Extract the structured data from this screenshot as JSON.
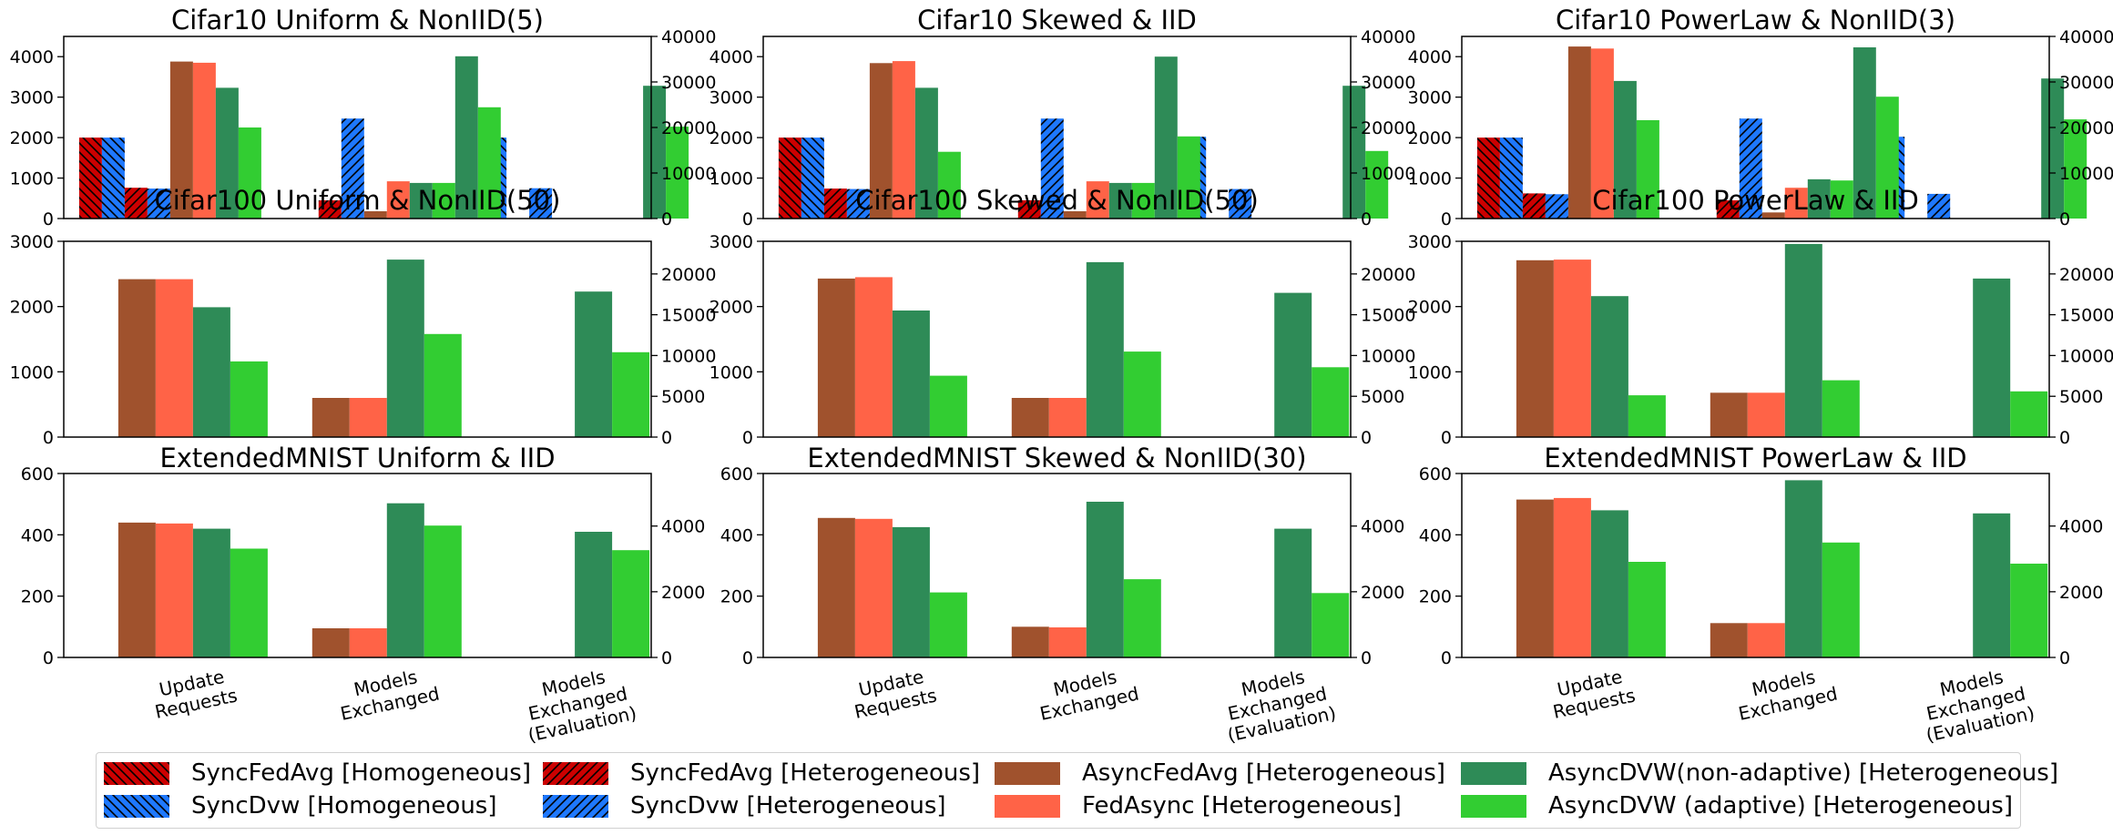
{
  "colors": {
    "sync_fedavg": "#cc0000",
    "sync_dvw": "#1e78ff",
    "async_fedavg": "#a0522d",
    "fedasync": "#ff6347",
    "asyncdvw_nonadaptive": "#2e8b57",
    "asyncdvw_adaptive": "#32cd32"
  },
  "x_categories": [
    "Update\nRequests",
    "Models\nExchanged",
    "Models\nExchanged\n(Evaluation)"
  ],
  "legend": [
    {
      "label": "SyncFedAvg [Homogeneous]",
      "color_key": "sync_fedavg",
      "hatch": "back"
    },
    {
      "label": "SyncDvw [Homogeneous]",
      "color_key": "sync_dvw",
      "hatch": "back"
    },
    {
      "label": "SyncFedAvg [Heterogeneous]",
      "color_key": "sync_fedavg",
      "hatch": "fwd"
    },
    {
      "label": "SyncDvw [Heterogeneous]",
      "color_key": "sync_dvw",
      "hatch": "fwd"
    },
    {
      "label": "AsyncFedAvg [Heterogeneous]",
      "color_key": "async_fedavg",
      "hatch": "none"
    },
    {
      "label": "FedAsync [Heterogeneous]",
      "color_key": "fedasync",
      "hatch": "none"
    },
    {
      "label": "AsyncDVW(non-adaptive) [Heterogeneous]",
      "color_key": "asyncdvw_nonadaptive",
      "hatch": "none"
    },
    {
      "label": "AsyncDVW (adaptive) [Heterogeneous]",
      "color_key": "asyncdvw_adaptive",
      "hatch": "none"
    }
  ],
  "chart_data": [
    {
      "type": "bar",
      "title": "Cifar10 Uniform & NonIID(5)",
      "ylim": [
        0,
        4500
      ],
      "yticks": [
        0,
        1000,
        2000,
        3000,
        4000
      ],
      "y2lim": [
        0,
        40000
      ],
      "y2ticks": [
        0,
        10000,
        20000,
        30000,
        40000
      ],
      "series": [
        {
          "name": "SyncFedAvg [Homogeneous]",
          "color_key": "sync_fedavg",
          "hatch": "back",
          "slot": 0,
          "values": [
            2000,
            null,
            null
          ]
        },
        {
          "name": "SyncDvw [Homogeneous]",
          "color_key": "sync_dvw",
          "hatch": "back",
          "slot": 1,
          "values": [
            2000,
            null,
            2000
          ]
        },
        {
          "name": "SyncFedAvg [Heterogeneous]",
          "color_key": "sync_fedavg",
          "hatch": "fwd",
          "slot": 2,
          "values": [
            760,
            450,
            null
          ]
        },
        {
          "name": "SyncDvw [Heterogeneous]",
          "color_key": "sync_dvw",
          "hatch": "fwd",
          "slot": 3,
          "values": [
            740,
            2470,
            750
          ]
        },
        {
          "name": "AsyncFedAvg [Heterogeneous]",
          "color_key": "async_fedavg",
          "hatch": "none",
          "slot": 4,
          "values": [
            3880,
            180,
            null
          ]
        },
        {
          "name": "FedAsync [Heterogeneous]",
          "color_key": "fedasync",
          "hatch": "none",
          "slot": 5,
          "values": [
            3850,
            920,
            null
          ]
        },
        {
          "name": "AsyncDVW(non-adaptive) [Heterogeneous]",
          "color_key": "asyncdvw_nonadaptive",
          "hatch": "none",
          "slot": 6,
          "values": [
            3230,
            880,
            null
          ]
        },
        {
          "name": "AsyncDVW (adaptive) [Heterogeneous]",
          "color_key": "asyncdvw_adaptive",
          "hatch": "none",
          "slot": 7,
          "values": [
            2250,
            880,
            null
          ]
        },
        {
          "name": "AsyncDVW(non-adaptive) [Heterogeneous]",
          "color_key": "asyncdvw_nonadaptive",
          "hatch": "none",
          "slot": 8,
          "values": [
            null,
            4010,
            3280
          ]
        },
        {
          "name": "AsyncDVW (adaptive) [Heterogeneous]",
          "color_key": "asyncdvw_adaptive",
          "hatch": "none",
          "slot": 9,
          "values": [
            null,
            2750,
            2270
          ]
        }
      ]
    },
    {
      "type": "bar",
      "title": "Cifar10 Skewed & IID",
      "ylim": [
        0,
        4500
      ],
      "yticks": [
        0,
        1000,
        2000,
        3000,
        4000
      ],
      "y2lim": [
        0,
        40000
      ],
      "y2ticks": [
        0,
        10000,
        20000,
        30000,
        40000
      ],
      "series": [
        {
          "name": "SyncFedAvg [Homogeneous]",
          "color_key": "sync_fedavg",
          "hatch": "back",
          "slot": 0,
          "values": [
            2000,
            null,
            null
          ]
        },
        {
          "name": "SyncDvw [Homogeneous]",
          "color_key": "sync_dvw",
          "hatch": "back",
          "slot": 1,
          "values": [
            2000,
            null,
            2020
          ]
        },
        {
          "name": "SyncFedAvg [Heterogeneous]",
          "color_key": "sync_fedavg",
          "hatch": "fwd",
          "slot": 2,
          "values": [
            740,
            450,
            null
          ]
        },
        {
          "name": "SyncDvw [Heterogeneous]",
          "color_key": "sync_dvw",
          "hatch": "fwd",
          "slot": 3,
          "values": [
            730,
            2470,
            730
          ]
        },
        {
          "name": "AsyncFedAvg [Heterogeneous]",
          "color_key": "async_fedavg",
          "hatch": "none",
          "slot": 4,
          "values": [
            3840,
            180,
            null
          ]
        },
        {
          "name": "FedAsync [Heterogeneous]",
          "color_key": "fedasync",
          "hatch": "none",
          "slot": 5,
          "values": [
            3890,
            920,
            null
          ]
        },
        {
          "name": "AsyncDVW(non-adaptive) [Heterogeneous]",
          "color_key": "asyncdvw_nonadaptive",
          "hatch": "none",
          "slot": 6,
          "values": [
            3230,
            880,
            null
          ]
        },
        {
          "name": "AsyncDVW (adaptive) [Heterogeneous]",
          "color_key": "asyncdvw_adaptive",
          "hatch": "none",
          "slot": 7,
          "values": [
            1650,
            880,
            null
          ]
        },
        {
          "name": "AsyncDVW(non-adaptive) [Heterogeneous]",
          "color_key": "asyncdvw_nonadaptive",
          "hatch": "none",
          "slot": 8,
          "values": [
            null,
            4000,
            3280
          ]
        },
        {
          "name": "AsyncDVW (adaptive) [Heterogeneous]",
          "color_key": "asyncdvw_adaptive",
          "hatch": "none",
          "slot": 9,
          "values": [
            null,
            2030,
            1670
          ]
        }
      ]
    },
    {
      "type": "bar",
      "title": "Cifar10 PowerLaw & NonIID(3)",
      "ylim": [
        0,
        4500
      ],
      "yticks": [
        0,
        1000,
        2000,
        3000,
        4000
      ],
      "y2lim": [
        0,
        40000
      ],
      "y2ticks": [
        0,
        10000,
        20000,
        30000,
        40000
      ],
      "series": [
        {
          "name": "SyncFedAvg [Homogeneous]",
          "color_key": "sync_fedavg",
          "hatch": "back",
          "slot": 0,
          "values": [
            2000,
            null,
            null
          ]
        },
        {
          "name": "SyncDvw [Homogeneous]",
          "color_key": "sync_dvw",
          "hatch": "back",
          "slot": 1,
          "values": [
            2000,
            null,
            2020
          ]
        },
        {
          "name": "SyncFedAvg [Heterogeneous]",
          "color_key": "sync_fedavg",
          "hatch": "fwd",
          "slot": 2,
          "values": [
            620,
            450,
            null
          ]
        },
        {
          "name": "SyncDvw [Heterogeneous]",
          "color_key": "sync_dvw",
          "hatch": "fwd",
          "slot": 3,
          "values": [
            600,
            2470,
            610
          ]
        },
        {
          "name": "AsyncFedAvg [Heterogeneous]",
          "color_key": "async_fedavg",
          "hatch": "none",
          "slot": 4,
          "values": [
            4250,
            150,
            null
          ]
        },
        {
          "name": "FedAsync [Heterogeneous]",
          "color_key": "fedasync",
          "hatch": "none",
          "slot": 5,
          "values": [
            4200,
            760,
            null
          ]
        },
        {
          "name": "AsyncDVW(non-adaptive) [Heterogeneous]",
          "color_key": "asyncdvw_nonadaptive",
          "hatch": "none",
          "slot": 6,
          "values": [
            3400,
            970,
            null
          ]
        },
        {
          "name": "AsyncDVW (adaptive) [Heterogeneous]",
          "color_key": "asyncdvw_adaptive",
          "hatch": "none",
          "slot": 7,
          "values": [
            2430,
            940,
            null
          ]
        },
        {
          "name": "AsyncDVW(non-adaptive) [Heterogeneous]",
          "color_key": "asyncdvw_nonadaptive",
          "hatch": "none",
          "slot": 8,
          "values": [
            null,
            4230,
            3460
          ]
        },
        {
          "name": "AsyncDVW (adaptive) [Heterogeneous]",
          "color_key": "asyncdvw_adaptive",
          "hatch": "none",
          "slot": 9,
          "values": [
            null,
            3010,
            2450
          ]
        }
      ]
    },
    {
      "type": "bar",
      "title": "Cifar100 Uniform & NonIID(50)",
      "ylim": [
        0,
        3000
      ],
      "yticks": [
        0,
        1000,
        2000,
        3000
      ],
      "y2lim": [
        0,
        24000
      ],
      "y2ticks": [
        0,
        5000,
        10000,
        15000,
        20000
      ],
      "series": [
        {
          "name": "AsyncFedAvg [Heterogeneous]",
          "color_key": "async_fedavg",
          "hatch": "none",
          "slot": 0,
          "values": [
            2420,
            600,
            null
          ]
        },
        {
          "name": "FedAsync [Heterogeneous]",
          "color_key": "fedasync",
          "hatch": "none",
          "slot": 1,
          "values": [
            2420,
            600,
            null
          ]
        },
        {
          "name": "AsyncDVW(non-adaptive) [Heterogeneous]",
          "color_key": "asyncdvw_nonadaptive",
          "hatch": "none",
          "slot": 2,
          "values": [
            1990,
            2720,
            2230
          ]
        },
        {
          "name": "AsyncDVW (adaptive) [Heterogeneous]",
          "color_key": "asyncdvw_adaptive",
          "hatch": "none",
          "slot": 3,
          "values": [
            1160,
            1580,
            1300
          ]
        }
      ]
    },
    {
      "type": "bar",
      "title": "Cifar100 Skewed & NonIID(50)",
      "ylim": [
        0,
        3000
      ],
      "yticks": [
        0,
        1000,
        2000,
        3000
      ],
      "y2lim": [
        0,
        24000
      ],
      "y2ticks": [
        0,
        5000,
        10000,
        15000,
        20000
      ],
      "series": [
        {
          "name": "AsyncFedAvg [Heterogeneous]",
          "color_key": "async_fedavg",
          "hatch": "none",
          "slot": 0,
          "values": [
            2430,
            600,
            null
          ]
        },
        {
          "name": "FedAsync [Heterogeneous]",
          "color_key": "fedasync",
          "hatch": "none",
          "slot": 1,
          "values": [
            2450,
            600,
            null
          ]
        },
        {
          "name": "AsyncDVW(non-adaptive) [Heterogeneous]",
          "color_key": "asyncdvw_nonadaptive",
          "hatch": "none",
          "slot": 2,
          "values": [
            1940,
            2680,
            2210
          ]
        },
        {
          "name": "AsyncDVW (adaptive) [Heterogeneous]",
          "color_key": "asyncdvw_adaptive",
          "hatch": "none",
          "slot": 3,
          "values": [
            940,
            1310,
            1070
          ]
        }
      ]
    },
    {
      "type": "bar",
      "title": "Cifar100 PowerLaw & IID",
      "ylim": [
        0,
        3000
      ],
      "yticks": [
        0,
        1000,
        2000,
        3000
      ],
      "y2lim": [
        0,
        24000
      ],
      "y2ticks": [
        0,
        5000,
        10000,
        15000,
        20000
      ],
      "series": [
        {
          "name": "AsyncFedAvg [Heterogeneous]",
          "color_key": "async_fedavg",
          "hatch": "none",
          "slot": 0,
          "values": [
            2710,
            680,
            null
          ]
        },
        {
          "name": "FedAsync [Heterogeneous]",
          "color_key": "fedasync",
          "hatch": "none",
          "slot": 1,
          "values": [
            2720,
            680,
            null
          ]
        },
        {
          "name": "AsyncDVW(non-adaptive) [Heterogeneous]",
          "color_key": "asyncdvw_nonadaptive",
          "hatch": "none",
          "slot": 2,
          "values": [
            2160,
            2960,
            2430
          ]
        },
        {
          "name": "AsyncDVW (adaptive) [Heterogeneous]",
          "color_key": "asyncdvw_adaptive",
          "hatch": "none",
          "slot": 3,
          "values": [
            640,
            870,
            700
          ]
        }
      ]
    },
    {
      "type": "bar",
      "title": "ExtendedMNIST Uniform & IID",
      "ylim": [
        0,
        600
      ],
      "yticks": [
        0,
        200,
        400,
        600
      ],
      "y2lim": [
        0,
        5600
      ],
      "y2ticks": [
        0,
        2000,
        4000
      ],
      "series": [
        {
          "name": "AsyncFedAvg [Heterogeneous]",
          "color_key": "async_fedavg",
          "hatch": "none",
          "slot": 0,
          "values": [
            440,
            95,
            null
          ]
        },
        {
          "name": "FedAsync [Heterogeneous]",
          "color_key": "fedasync",
          "hatch": "none",
          "slot": 1,
          "values": [
            437,
            95,
            null
          ]
        },
        {
          "name": "AsyncDVW(non-adaptive) [Heterogeneous]",
          "color_key": "asyncdvw_nonadaptive",
          "hatch": "none",
          "slot": 2,
          "values": [
            420,
            503,
            410
          ]
        },
        {
          "name": "AsyncDVW (adaptive) [Heterogeneous]",
          "color_key": "asyncdvw_adaptive",
          "hatch": "none",
          "slot": 3,
          "values": [
            355,
            430,
            350
          ]
        }
      ]
    },
    {
      "type": "bar",
      "title": "ExtendedMNIST Skewed & NonIID(30)",
      "ylim": [
        0,
        600
      ],
      "yticks": [
        0,
        200,
        400,
        600
      ],
      "y2lim": [
        0,
        5600
      ],
      "y2ticks": [
        0,
        2000,
        4000
      ],
      "series": [
        {
          "name": "AsyncFedAvg [Heterogeneous]",
          "color_key": "async_fedavg",
          "hatch": "none",
          "slot": 0,
          "values": [
            455,
            100,
            null
          ]
        },
        {
          "name": "FedAsync [Heterogeneous]",
          "color_key": "fedasync",
          "hatch": "none",
          "slot": 1,
          "values": [
            452,
            98,
            null
          ]
        },
        {
          "name": "AsyncDVW(non-adaptive) [Heterogeneous]",
          "color_key": "asyncdvw_nonadaptive",
          "hatch": "none",
          "slot": 2,
          "values": [
            425,
            508,
            420
          ]
        },
        {
          "name": "AsyncDVW (adaptive) [Heterogeneous]",
          "color_key": "asyncdvw_adaptive",
          "hatch": "none",
          "slot": 3,
          "values": [
            212,
            255,
            210
          ]
        }
      ]
    },
    {
      "type": "bar",
      "title": "ExtendedMNIST PowerLaw & IID",
      "ylim": [
        0,
        600
      ],
      "yticks": [
        0,
        200,
        400,
        600
      ],
      "y2lim": [
        0,
        5600
      ],
      "y2ticks": [
        0,
        2000,
        4000
      ],
      "series": [
        {
          "name": "AsyncFedAvg [Heterogeneous]",
          "color_key": "async_fedavg",
          "hatch": "none",
          "slot": 0,
          "values": [
            515,
            112,
            null
          ]
        },
        {
          "name": "FedAsync [Heterogeneous]",
          "color_key": "fedasync",
          "hatch": "none",
          "slot": 1,
          "values": [
            520,
            112,
            null
          ]
        },
        {
          "name": "AsyncDVW(non-adaptive) [Heterogeneous]",
          "color_key": "asyncdvw_nonadaptive",
          "hatch": "none",
          "slot": 2,
          "values": [
            480,
            578,
            470
          ]
        },
        {
          "name": "AsyncDVW (adaptive) [Heterogeneous]",
          "color_key": "asyncdvw_adaptive",
          "hatch": "none",
          "slot": 3,
          "values": [
            312,
            375,
            306
          ]
        }
      ]
    }
  ]
}
